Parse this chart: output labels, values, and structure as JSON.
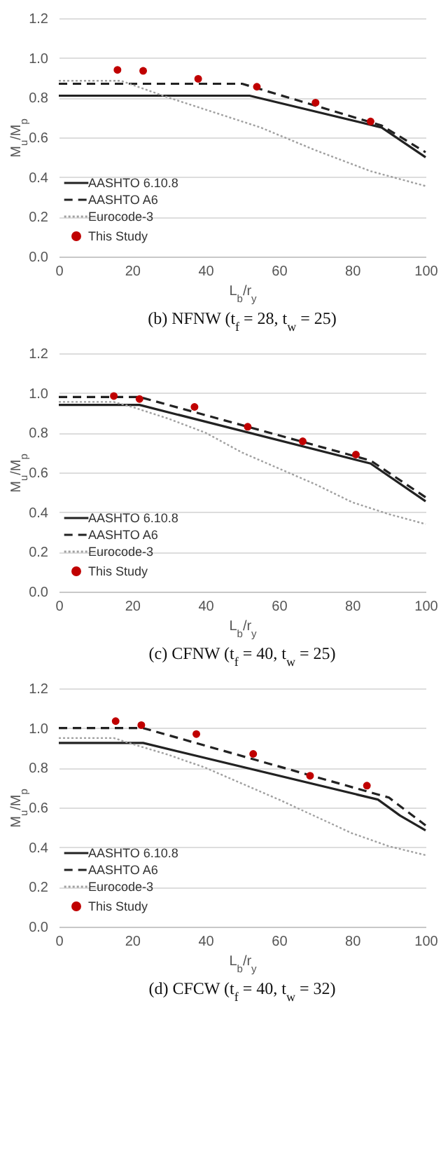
{
  "chart_data": [
    {
      "type": "line",
      "title": "(b) NFNW (t$_{f}$ = 28, t$_{w}$ = 25)",
      "xlabel": "L$_{b}$/r$_{y}$",
      "ylabel": "M$_{u}$/M$_{p}$",
      "xlim": [
        0,
        100
      ],
      "ylim": [
        0,
        1.2
      ],
      "xticks": [
        0,
        20,
        40,
        60,
        80,
        100
      ],
      "yticks": [
        {
          "value": 0,
          "label": "0.0"
        },
        {
          "value": 0.2,
          "label": "0.2"
        },
        {
          "value": 0.4,
          "label": "0.4"
        },
        {
          "value": 0.6,
          "label": "0.6"
        },
        {
          "value": 0.8,
          "label": "0.8"
        },
        {
          "value": 1,
          "label": "1.0"
        },
        {
          "value": 1.2,
          "label": "1.2"
        }
      ],
      "grid": "y",
      "legend": "bottom left",
      "series": [
        {
          "name": "AASHTO 6.10.8",
          "line_style": "solid",
          "color": "#222222",
          "x": [
            0,
            52,
            88,
            100
          ],
          "values": [
            0.81,
            0.81,
            0.65,
            0.5
          ]
        },
        {
          "name": "AASHTO A6",
          "line_style": "dashed",
          "color": "#222222",
          "x": [
            0,
            50,
            88,
            100
          ],
          "values": [
            0.87,
            0.87,
            0.66,
            0.525
          ]
        },
        {
          "name": "Eurocode-3",
          "line_style": "dotted",
          "color": "#a0a0a0",
          "x": [
            0,
            17,
            30,
            40,
            55,
            70,
            85,
            100
          ],
          "values": [
            0.885,
            0.885,
            0.8,
            0.74,
            0.65,
            0.535,
            0.43,
            0.355
          ]
        },
        {
          "name": "This Study",
          "type": "scatter",
          "marker": "circle",
          "color": "#c00000",
          "x": [
            16,
            23,
            38,
            54,
            70,
            85
          ],
          "values": [
            0.94,
            0.935,
            0.895,
            0.855,
            0.775,
            0.68
          ]
        }
      ]
    },
    {
      "type": "line",
      "title": "(c) CFNW (t$_{f}$ = 40, t$_{w}$ = 25)",
      "xlabel": "L$_{b}$/r$_{y}$",
      "ylabel": "M$_{u}$/M$_{p}$",
      "xlim": [
        0,
        100
      ],
      "ylim": [
        0,
        1.2
      ],
      "xticks": [
        0,
        20,
        40,
        60,
        80,
        100
      ],
      "yticks": [
        {
          "value": 0,
          "label": "0.0"
        },
        {
          "value": 0.2,
          "label": "0.2"
        },
        {
          "value": 0.4,
          "label": "0.4"
        },
        {
          "value": 0.6,
          "label": "0.6"
        },
        {
          "value": 0.8,
          "label": "0.8"
        },
        {
          "value": 1,
          "label": "1.0"
        },
        {
          "value": 1.2,
          "label": "1.2"
        }
      ],
      "grid": "y",
      "legend": "bottom left",
      "series": [
        {
          "name": "AASHTO 6.10.8",
          "line_style": "solid",
          "color": "#222222",
          "x": [
            0,
            22,
            85,
            100
          ],
          "values": [
            0.94,
            0.94,
            0.645,
            0.455
          ]
        },
        {
          "name": "AASHTO A6",
          "line_style": "dashed",
          "color": "#222222",
          "x": [
            0,
            22,
            85,
            100
          ],
          "values": [
            0.98,
            0.98,
            0.66,
            0.475
          ]
        },
        {
          "name": "Eurocode-3",
          "line_style": "dotted",
          "color": "#a0a0a0",
          "x": [
            0,
            15,
            20,
            30,
            40,
            50,
            60,
            70,
            80,
            90,
            100
          ],
          "values": [
            0.955,
            0.955,
            0.93,
            0.87,
            0.8,
            0.7,
            0.62,
            0.54,
            0.45,
            0.39,
            0.34
          ]
        },
        {
          "name": "This Study",
          "type": "scatter",
          "marker": "circle",
          "color": "#c00000",
          "x": [
            15,
            22,
            37,
            51.5,
            66.5,
            81
          ],
          "values": [
            0.985,
            0.97,
            0.93,
            0.83,
            0.757,
            0.69
          ]
        }
      ]
    },
    {
      "type": "line",
      "title": "(d) CFCW (t$_{f}$ = 40, t$_{w}$ = 32)",
      "xlabel": "L$_{b}$/r$_{y}$",
      "ylabel": "M$_{u}$/M$_{p}$",
      "xlim": [
        0,
        100
      ],
      "ylim": [
        0,
        1.2
      ],
      "xticks": [
        0,
        20,
        40,
        60,
        80,
        100
      ],
      "yticks": [
        {
          "value": 0,
          "label": "0.0"
        },
        {
          "value": 0.2,
          "label": "0.2"
        },
        {
          "value": 0.4,
          "label": "0.4"
        },
        {
          "value": 0.6,
          "label": "0.6"
        },
        {
          "value": 0.8,
          "label": "0.8"
        },
        {
          "value": 1,
          "label": "1.0"
        },
        {
          "value": 1.2,
          "label": "1.2"
        }
      ],
      "grid": "y",
      "legend": "bottom left",
      "series": [
        {
          "name": "AASHTO 6.10.8",
          "line_style": "solid",
          "color": "#222222",
          "x": [
            0,
            23,
            87,
            93,
            100
          ],
          "values": [
            0.925,
            0.925,
            0.64,
            0.56,
            0.485
          ]
        },
        {
          "name": "AASHTO A6",
          "line_style": "dashed",
          "color": "#222222",
          "x": [
            0,
            23,
            90,
            100
          ],
          "values": [
            1,
            1,
            0.65,
            0.51
          ]
        },
        {
          "name": "Eurocode-3",
          "line_style": "dotted",
          "color": "#a0a0a0",
          "x": [
            0,
            15,
            20,
            30,
            40,
            50,
            60,
            70,
            80,
            90,
            100
          ],
          "values": [
            0.95,
            0.95,
            0.92,
            0.865,
            0.8,
            0.72,
            0.64,
            0.555,
            0.47,
            0.405,
            0.36
          ]
        },
        {
          "name": "This Study",
          "type": "scatter",
          "marker": "circle",
          "color": "#c00000",
          "x": [
            15.5,
            22.5,
            37.5,
            53,
            68.5,
            84
          ],
          "values": [
            1.035,
            1.015,
            0.97,
            0.87,
            0.76,
            0.71
          ]
        }
      ]
    }
  ]
}
